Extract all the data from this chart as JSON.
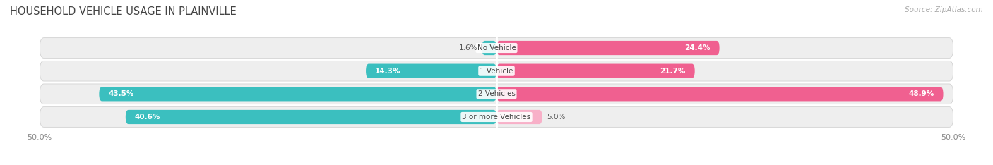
{
  "title": "HOUSEHOLD VEHICLE USAGE IN PLAINVILLE",
  "source": "Source: ZipAtlas.com",
  "categories": [
    "No Vehicle",
    "1 Vehicle",
    "2 Vehicles",
    "3 or more Vehicles"
  ],
  "owner_values": [
    1.6,
    14.3,
    43.5,
    40.6
  ],
  "renter_values": [
    24.4,
    21.7,
    48.9,
    5.0
  ],
  "owner_color": "#3BBFBF",
  "renter_color": "#F06090",
  "renter_color_light": "#F8B0C8",
  "xlim": 50.0,
  "axis_label_left": "50.0%",
  "axis_label_right": "50.0%",
  "title_fontsize": 10.5,
  "source_fontsize": 7.5,
  "bar_height": 0.62,
  "background_color": "#FFFFFF",
  "strip_bg": "#EEEEEE",
  "strip_border": "#DDDDDD",
  "label_color_dark": "#555555",
  "label_color_white": "#FFFFFF",
  "center_label_color": "#444444"
}
